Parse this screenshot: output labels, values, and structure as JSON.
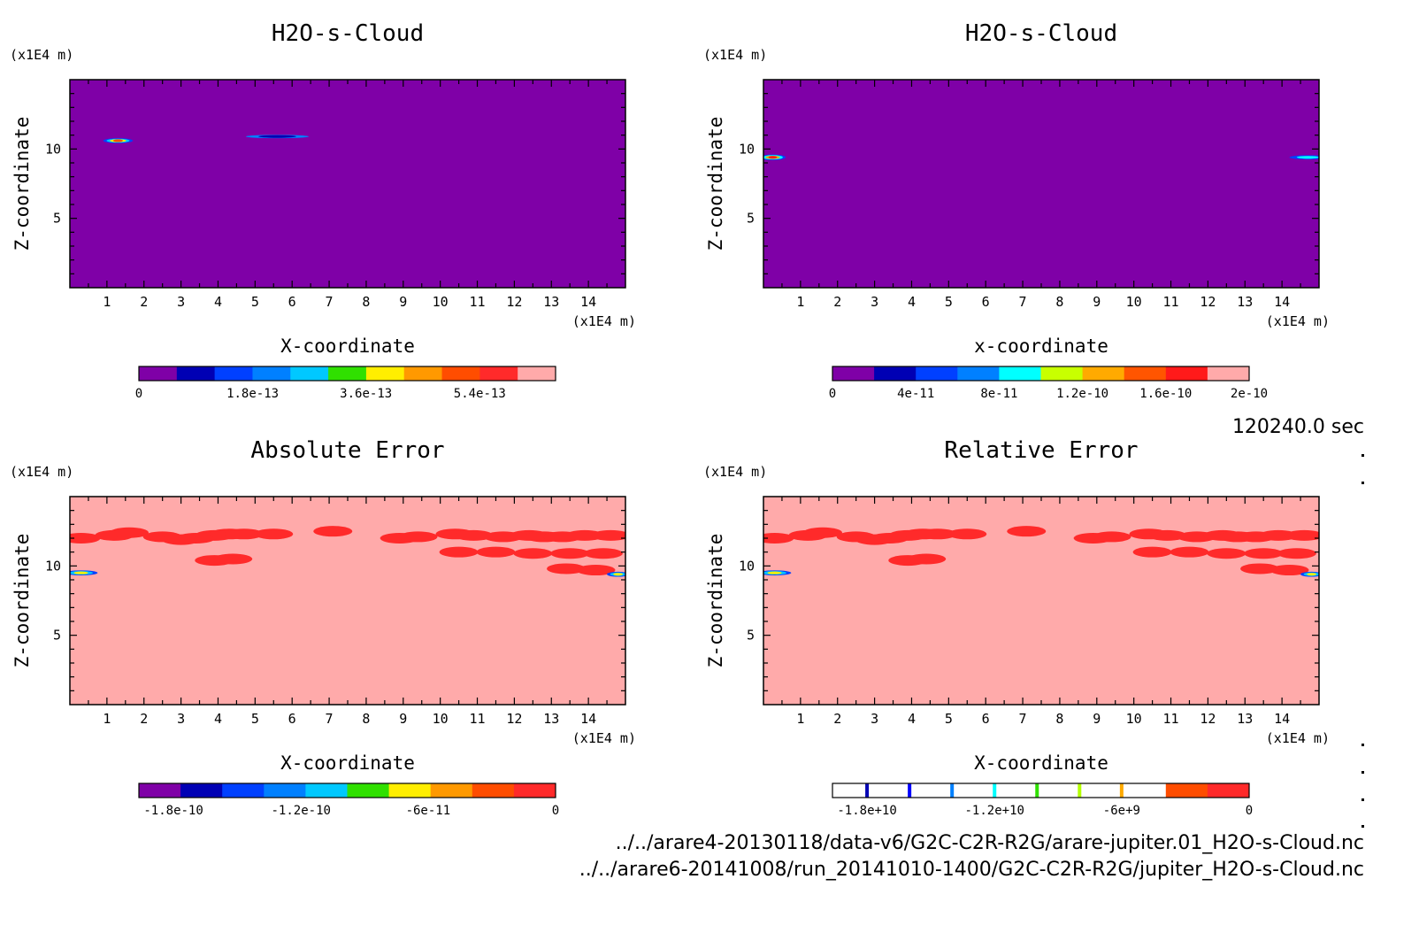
{
  "time_label": "120240.0 sec",
  "files": [
    "../../arare4-20130118/data-v6/G2C-C2R-R2G/arare-jupiter.01_H2O-s-Cloud.nc",
    "../../arare6-20141008/run_20141010-1400/G2C-C2R-R2G/jupiter_H2O-s-Cloud.nc"
  ],
  "colors": {
    "background_purple": "#7f00a7",
    "background_pink": "#ffaaaa",
    "blob_red": "#ff2a2a"
  },
  "chart_data": [
    {
      "type": "heatmap",
      "title": "H2O-s-Cloud",
      "xlabel": "X-coordinate",
      "ylabel": "Z-coordinate",
      "xunit": "(x1E4 m)",
      "yunit": "(x1E4 m)",
      "xlim": [
        0,
        15
      ],
      "ylim": [
        0,
        15
      ],
      "xticks": [
        "1",
        "2",
        "3",
        "4",
        "5",
        "6",
        "7",
        "8",
        "9",
        "10",
        "11",
        "12",
        "13",
        "14"
      ],
      "yticks": [
        "5",
        "10"
      ],
      "background": "#7f00a7",
      "colorbar": {
        "colors": [
          "#7f00a7",
          "#0000b4",
          "#0040ff",
          "#0080ff",
          "#00c8ff",
          "#30e000",
          "#ffee00",
          "#ff9900",
          "#ff4d00",
          "#ff2a2a",
          "#ffaaaa"
        ],
        "labels": [
          "0",
          "1.8e-13",
          "3.6e-13",
          "5.4e-13"
        ],
        "label_stops": [
          0,
          0.273,
          0.545,
          0.818
        ]
      },
      "features": [
        {
          "cx": 1.3,
          "cz": 10.6,
          "rx": 0.4,
          "rz": 0.18,
          "colors": [
            "#0040ff",
            "#00c8ff",
            "#ffee00",
            "#ff4d00"
          ]
        },
        {
          "cx": 5.6,
          "cz": 10.9,
          "rx": 0.85,
          "rz": 0.12,
          "colors": [
            "#0080ff",
            "#0000b4"
          ]
        }
      ]
    },
    {
      "type": "heatmap",
      "title": "H2O-s-Cloud",
      "xlabel": "x-coordinate",
      "ylabel": "Z-coordinate",
      "xunit": "(x1E4 m)",
      "yunit": "(x1E4 m)",
      "xlim": [
        0,
        15
      ],
      "ylim": [
        0,
        15
      ],
      "xticks": [
        "1",
        "2",
        "3",
        "4",
        "5",
        "6",
        "7",
        "8",
        "9",
        "10",
        "11",
        "12",
        "13",
        "14"
      ],
      "yticks": [
        "5",
        "10"
      ],
      "background": "#7f00a7",
      "colorbar": {
        "colors": [
          "#7f00a7",
          "#0000b4",
          "#0040ff",
          "#0080ff",
          "#00ffff",
          "#c8ff00",
          "#ffaa00",
          "#ff5500",
          "#ff1a1a",
          "#ffaaaa"
        ],
        "labels": [
          "0",
          "4e-11",
          "8e-11",
          "1.2e-10",
          "1.6e-10",
          "2e-10"
        ],
        "label_stops": [
          0,
          0.2,
          0.4,
          0.6,
          0.8,
          1.0
        ]
      },
      "features": [
        {
          "cx": 0.25,
          "cz": 9.4,
          "rx": 0.35,
          "rz": 0.2,
          "colors": [
            "#0040ff",
            "#00ffff",
            "#ffaa00",
            "#ff1a1a"
          ]
        },
        {
          "cx": 14.7,
          "cz": 9.4,
          "rx": 0.5,
          "rz": 0.15,
          "colors": [
            "#0040ff",
            "#00ffff"
          ]
        }
      ]
    },
    {
      "type": "heatmap",
      "title": "Absolute Error",
      "xlabel": "X-coordinate",
      "ylabel": "Z-coordinate",
      "xunit": "(x1E4 m)",
      "yunit": "(x1E4 m)",
      "xlim": [
        0,
        15
      ],
      "ylim": [
        0,
        15
      ],
      "xticks": [
        "1",
        "2",
        "3",
        "4",
        "5",
        "6",
        "7",
        "8",
        "9",
        "10",
        "11",
        "12",
        "13",
        "14"
      ],
      "yticks": [
        "5",
        "10"
      ],
      "background": "#ffaaaa",
      "colorbar": {
        "colors": [
          "#7f00a7",
          "#0000b4",
          "#0040ff",
          "#0080ff",
          "#00c8ff",
          "#30e000",
          "#ffee00",
          "#ff9900",
          "#ff4d00",
          "#ff2a2a"
        ],
        "labels": [
          "-1.8e-10",
          "-1.2e-10",
          "-6e-11",
          "0"
        ],
        "label_stops": [
          0.083,
          0.389,
          0.694,
          1.0
        ]
      },
      "features": [
        {
          "cx": 0.3,
          "cz": 9.5,
          "rx": 0.45,
          "rz": 0.18,
          "colors": [
            "#0040ff",
            "#00c8ff",
            "#ffee00"
          ]
        },
        {
          "cx": 14.8,
          "cz": 9.4,
          "rx": 0.3,
          "rz": 0.18,
          "colors": [
            "#0040ff",
            "#00c8ff",
            "#ffee00"
          ]
        }
      ],
      "patches": [
        [
          0.3,
          12.0
        ],
        [
          1.2,
          12.2
        ],
        [
          1.6,
          12.4
        ],
        [
          2.5,
          12.1
        ],
        [
          3.0,
          11.9
        ],
        [
          3.4,
          12.0
        ],
        [
          3.9,
          12.2
        ],
        [
          4.3,
          12.3
        ],
        [
          4.4,
          10.5
        ],
        [
          3.9,
          10.4
        ],
        [
          4.7,
          12.3
        ],
        [
          5.5,
          12.3
        ],
        [
          7.1,
          12.5
        ],
        [
          8.9,
          12.0
        ],
        [
          9.4,
          12.1
        ],
        [
          10.4,
          12.3
        ],
        [
          10.9,
          12.2
        ],
        [
          11.7,
          12.1
        ],
        [
          12.4,
          12.2
        ],
        [
          12.8,
          12.1
        ],
        [
          13.3,
          12.1
        ],
        [
          13.9,
          12.2
        ],
        [
          14.6,
          12.2
        ],
        [
          10.5,
          11.0
        ],
        [
          11.5,
          11.0
        ],
        [
          12.5,
          10.9
        ],
        [
          13.5,
          10.9
        ],
        [
          14.4,
          10.9
        ],
        [
          13.4,
          9.8
        ],
        [
          14.2,
          9.7
        ]
      ]
    },
    {
      "type": "heatmap",
      "title": "Relative Error",
      "xlabel": "X-coordinate",
      "ylabel": "Z-coordinate",
      "xunit": "(x1E4 m)",
      "yunit": "(x1E4 m)",
      "xlim": [
        0,
        15
      ],
      "ylim": [
        0,
        15
      ],
      "xticks": [
        "1",
        "2",
        "3",
        "4",
        "5",
        "6",
        "7",
        "8",
        "9",
        "10",
        "11",
        "12",
        "13",
        "14"
      ],
      "yticks": [
        "5",
        "10"
      ],
      "background": "#ffaaaa",
      "colorbar": {
        "colors": [
          "#ffffff",
          "#ffffff",
          "#ffffff",
          "#ffffff",
          "#ffffff",
          "#ffffff",
          "#ffffff",
          "#ffffff",
          "#ff4d00",
          "#ff2a2a"
        ],
        "labels": [
          "-1.8e+10",
          "-1.2e+10",
          "-6e+9",
          "0"
        ],
        "label_stops": [
          0.083,
          0.389,
          0.694,
          1.0
        ],
        "line_stops": [
          0.083,
          0.185,
          0.287,
          0.389,
          0.491,
          0.593,
          0.694
        ],
        "line_colors": [
          "#0000b4",
          "#0000ff",
          "#0080ff",
          "#00ffff",
          "#30e000",
          "#b4ff00",
          "#ffaa00"
        ]
      },
      "features": [
        {
          "cx": 0.3,
          "cz": 9.5,
          "rx": 0.45,
          "rz": 0.18,
          "colors": [
            "#0040ff",
            "#00c8ff",
            "#ffee00"
          ]
        },
        {
          "cx": 14.8,
          "cz": 9.4,
          "rx": 0.3,
          "rz": 0.18,
          "colors": [
            "#0040ff",
            "#00c8ff",
            "#ffee00"
          ]
        }
      ],
      "patches": [
        [
          0.3,
          12.0
        ],
        [
          1.2,
          12.2
        ],
        [
          1.6,
          12.4
        ],
        [
          2.5,
          12.1
        ],
        [
          3.0,
          11.9
        ],
        [
          3.4,
          12.0
        ],
        [
          3.9,
          12.2
        ],
        [
          4.3,
          12.3
        ],
        [
          4.4,
          10.5
        ],
        [
          3.9,
          10.4
        ],
        [
          4.7,
          12.3
        ],
        [
          5.5,
          12.3
        ],
        [
          7.1,
          12.5
        ],
        [
          8.9,
          12.0
        ],
        [
          9.4,
          12.1
        ],
        [
          10.4,
          12.3
        ],
        [
          10.9,
          12.2
        ],
        [
          11.7,
          12.1
        ],
        [
          12.4,
          12.2
        ],
        [
          12.8,
          12.1
        ],
        [
          13.3,
          12.1
        ],
        [
          13.9,
          12.2
        ],
        [
          14.6,
          12.2
        ],
        [
          10.5,
          11.0
        ],
        [
          11.5,
          11.0
        ],
        [
          12.5,
          10.9
        ],
        [
          13.5,
          10.9
        ],
        [
          14.4,
          10.9
        ],
        [
          13.4,
          9.8
        ],
        [
          14.2,
          9.7
        ]
      ]
    }
  ]
}
